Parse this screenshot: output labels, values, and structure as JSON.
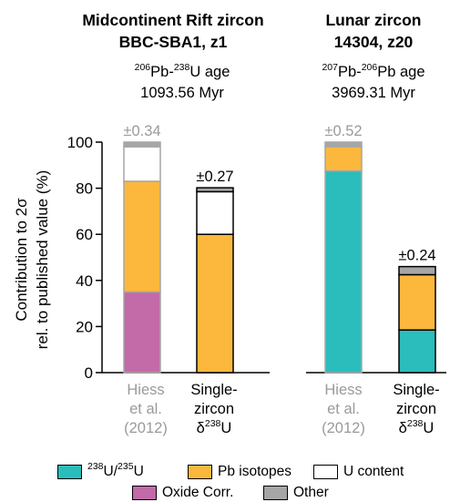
{
  "panels": [
    {
      "title_line1": "Midcontinent Rift zircon",
      "title_line2": "BBC-SBA1, z1",
      "age_isotope_a": "206",
      "age_element_a": "Pb-",
      "age_isotope_b": "238",
      "age_element_b": "U age",
      "age_value": "1093.56 Myr"
    },
    {
      "title_line1": "Lunar zircon",
      "title_line2": "14304, z20",
      "age_isotope_a": "207",
      "age_element_a": "Pb-",
      "age_isotope_b": "206",
      "age_element_b": "Pb age",
      "age_value": "3969.31 Myr"
    }
  ],
  "xlabels": {
    "hiess": [
      "Hiess",
      "et al.",
      "(2012)"
    ],
    "single_line1": "Single-",
    "single_line2": "zircon",
    "single_delta": "δ",
    "single_sup": "238",
    "single_tail": "U"
  },
  "legend": {
    "u_ratio_sup1": "238",
    "u_ratio_mid": "U/",
    "u_ratio_sup2": "235",
    "u_ratio_tail": "U",
    "pb": "Pb isotopes",
    "ucontent": "U content",
    "oxide": "Oxide Corr.",
    "other": "Other"
  },
  "colors": {
    "u_ratio": "#2bbcbc",
    "pb": "#fbb83c",
    "ucontent": "#ffffff",
    "oxide": "#c36aa8",
    "other": "#a6a6a6",
    "muted_text": "#9a9a9a"
  },
  "chart_data": {
    "type": "bar",
    "stacked": true,
    "ylabel_line1": "Contribution to 2σ",
    "ylabel_line2": "rel. to published value (%)",
    "ylim": [
      0,
      100
    ],
    "yticks": [
      0,
      20,
      40,
      60,
      80,
      100
    ],
    "grid": false,
    "bars": [
      {
        "group": "Midcontinent Rift zircon BBC-SBA1, z1",
        "category": "Hiess et al. (2012)",
        "total": "±0.34",
        "muted": true,
        "segments": [
          {
            "component": "oxide",
            "value": 35
          },
          {
            "component": "pb",
            "value": 48
          },
          {
            "component": "ucontent",
            "value": 15
          },
          {
            "component": "other",
            "value": 2
          }
        ]
      },
      {
        "group": "Midcontinent Rift zircon BBC-SBA1, z1",
        "category": "Single-zircon δ238U",
        "total": "±0.27",
        "muted": false,
        "segments": [
          {
            "component": "pb",
            "value": 60
          },
          {
            "component": "ucontent",
            "value": 18.5
          },
          {
            "component": "other",
            "value": 1.7
          }
        ]
      },
      {
        "group": "Lunar zircon 14304, z20",
        "category": "Hiess et al. (2012)",
        "total": "±0.52",
        "muted": true,
        "segments": [
          {
            "component": "u_ratio",
            "value": 87.5
          },
          {
            "component": "pb",
            "value": 10.5
          },
          {
            "component": "other",
            "value": 2
          }
        ]
      },
      {
        "group": "Lunar zircon 14304, z20",
        "category": "Single-zircon δ238U",
        "total": "±0.24",
        "muted": false,
        "segments": [
          {
            "component": "u_ratio",
            "value": 18.5
          },
          {
            "component": "pb",
            "value": 24
          },
          {
            "component": "other",
            "value": 3.5
          }
        ]
      }
    ]
  }
}
